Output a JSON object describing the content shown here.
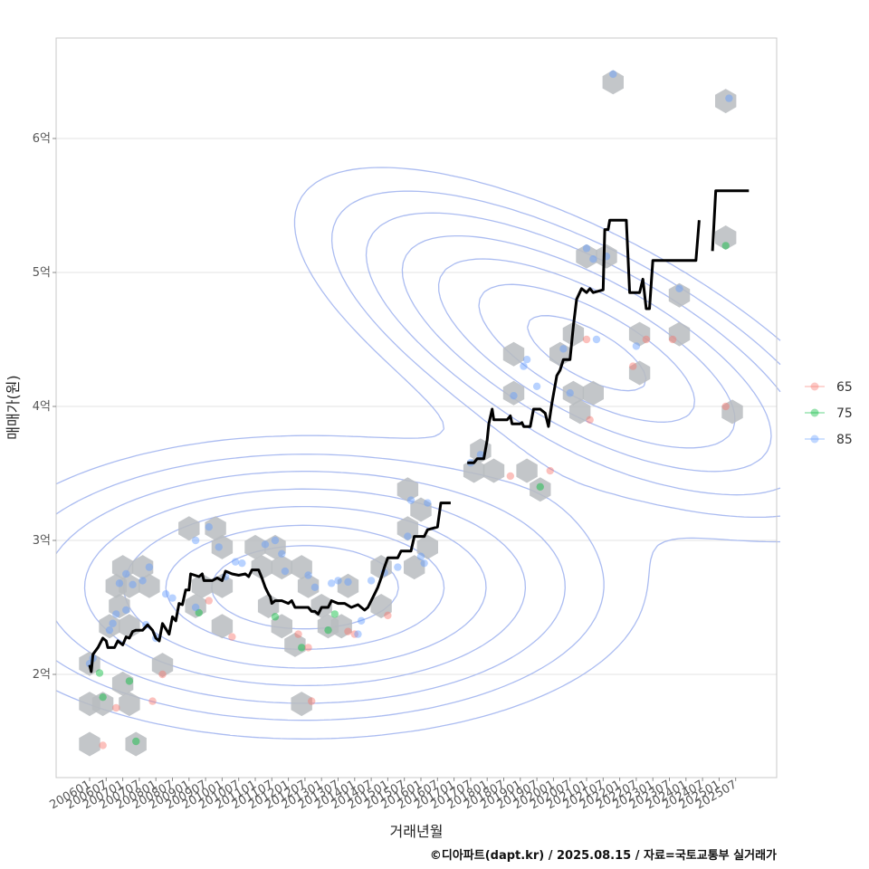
{
  "caption": "©디아파트(dapt.kr) / 2025.08.15 / 자료=국토교통부 실거래가",
  "chart_data": {
    "type": "scatter",
    "xlabel": "거래년월",
    "ylabel": "매매가(원)",
    "ylim": [
      1.25,
      6.85
    ],
    "yticks": [
      {
        "v": 2,
        "label": "2억"
      },
      {
        "v": 3,
        "label": "3억"
      },
      {
        "v": 4,
        "label": "4억"
      },
      {
        "v": 5,
        "label": "5억"
      },
      {
        "v": 6,
        "label": "6억"
      }
    ],
    "xticks": [
      "200601",
      "200607",
      "200701",
      "200707",
      "200801",
      "200807",
      "200901",
      "200907",
      "201001",
      "201007",
      "201101",
      "201107",
      "201201",
      "201207",
      "201301",
      "201307",
      "201401",
      "201407",
      "201501",
      "201507",
      "201601",
      "201607",
      "201701",
      "201707",
      "201801",
      "201807",
      "201901",
      "201907",
      "202001",
      "202007",
      "202101",
      "202107",
      "202201",
      "202207",
      "202301",
      "202307",
      "202401",
      "202407",
      "202501",
      "202507"
    ],
    "grid": true,
    "legend_position": "right",
    "legend": [
      {
        "name": "65",
        "color": "#f8766d"
      },
      {
        "name": "75",
        "color": "#00ba38"
      },
      {
        "name": "85",
        "color": "#619cff"
      }
    ],
    "points": [
      {
        "size": "85",
        "t": 0.0,
        "y": 2.08
      },
      {
        "size": "75",
        "t": 0.3,
        "y": 2.01
      },
      {
        "size": "85",
        "t": 0.1,
        "y": 2.12
      },
      {
        "size": "75",
        "t": 0.4,
        "y": 1.83
      },
      {
        "size": "65",
        "t": 0.4,
        "y": 1.47
      },
      {
        "size": "85",
        "t": 0.6,
        "y": 2.33
      },
      {
        "size": "85",
        "t": 0.7,
        "y": 2.38
      },
      {
        "size": "85",
        "t": 0.8,
        "y": 2.45
      },
      {
        "size": "85",
        "t": 0.9,
        "y": 2.68
      },
      {
        "size": "85",
        "t": 1.1,
        "y": 2.75
      },
      {
        "size": "85",
        "t": 1.3,
        "y": 2.67
      },
      {
        "size": "85",
        "t": 1.1,
        "y": 2.48
      },
      {
        "size": "65",
        "t": 0.8,
        "y": 1.75
      },
      {
        "size": "75",
        "t": 1.2,
        "y": 1.95
      },
      {
        "size": "75",
        "t": 1.4,
        "y": 1.5
      },
      {
        "size": "85",
        "t": 1.6,
        "y": 2.7
      },
      {
        "size": "85",
        "t": 1.8,
        "y": 2.8
      },
      {
        "size": "85",
        "t": 1.7,
        "y": 2.37
      },
      {
        "size": "65",
        "t": 1.9,
        "y": 1.8
      },
      {
        "size": "85",
        "t": 2.3,
        "y": 2.6
      },
      {
        "size": "65",
        "t": 2.2,
        "y": 2.0
      },
      {
        "size": "85",
        "t": 3.2,
        "y": 3.0
      },
      {
        "size": "85",
        "t": 3.6,
        "y": 3.1
      },
      {
        "size": "85",
        "t": 3.9,
        "y": 2.95
      },
      {
        "size": "65",
        "t": 3.6,
        "y": 2.55
      },
      {
        "size": "75",
        "t": 3.3,
        "y": 2.46
      },
      {
        "size": "85",
        "t": 3.2,
        "y": 2.5
      },
      {
        "size": "85",
        "t": 4.1,
        "y": 2.73
      },
      {
        "size": "65",
        "t": 4.3,
        "y": 2.28
      },
      {
        "size": "85",
        "t": 4.4,
        "y": 2.84
      },
      {
        "size": "85",
        "t": 4.6,
        "y": 2.83
      },
      {
        "size": "85",
        "t": 5.3,
        "y": 2.97
      },
      {
        "size": "85",
        "t": 5.6,
        "y": 3.0
      },
      {
        "size": "85",
        "t": 5.8,
        "y": 2.9
      },
      {
        "size": "85",
        "t": 5.9,
        "y": 2.77
      },
      {
        "size": "75",
        "t": 5.6,
        "y": 2.43
      },
      {
        "size": "65",
        "t": 6.3,
        "y": 2.3
      },
      {
        "size": "75",
        "t": 6.4,
        "y": 2.2
      },
      {
        "size": "65",
        "t": 6.6,
        "y": 2.2
      },
      {
        "size": "85",
        "t": 6.6,
        "y": 2.74
      },
      {
        "size": "85",
        "t": 6.8,
        "y": 2.65
      },
      {
        "size": "65",
        "t": 6.7,
        "y": 1.8
      },
      {
        "size": "85",
        "t": 7.3,
        "y": 2.68
      },
      {
        "size": "85",
        "t": 7.5,
        "y": 2.7
      },
      {
        "size": "85",
        "t": 7.8,
        "y": 2.69
      },
      {
        "size": "75",
        "t": 7.2,
        "y": 2.33
      },
      {
        "size": "75",
        "t": 7.4,
        "y": 2.45
      },
      {
        "size": "65",
        "t": 7.8,
        "y": 2.32
      },
      {
        "size": "65",
        "t": 8.0,
        "y": 2.3
      },
      {
        "size": "85",
        "t": 8.1,
        "y": 2.3
      },
      {
        "size": "85",
        "t": 8.2,
        "y": 2.4
      },
      {
        "size": "85",
        "t": 8.5,
        "y": 2.7
      },
      {
        "size": "85",
        "t": 8.9,
        "y": 2.76
      },
      {
        "size": "65",
        "t": 9.0,
        "y": 2.44
      },
      {
        "size": "85",
        "t": 9.3,
        "y": 2.8
      },
      {
        "size": "85",
        "t": 9.7,
        "y": 3.3
      },
      {
        "size": "85",
        "t": 9.6,
        "y": 3.03
      },
      {
        "size": "85",
        "t": 10.2,
        "y": 3.28
      },
      {
        "size": "85",
        "t": 10.0,
        "y": 2.88
      },
      {
        "size": "85",
        "t": 10.1,
        "y": 2.83
      },
      {
        "size": "85",
        "t": 11.5,
        "y": 3.58
      },
      {
        "size": "85",
        "t": 11.8,
        "y": 3.64
      },
      {
        "size": "65",
        "t": 12.7,
        "y": 3.48
      },
      {
        "size": "75",
        "t": 13.6,
        "y": 3.4
      },
      {
        "size": "65",
        "t": 13.9,
        "y": 3.52
      },
      {
        "size": "85",
        "t": 12.8,
        "y": 4.08
      },
      {
        "size": "85",
        "t": 13.1,
        "y": 4.3
      },
      {
        "size": "85",
        "t": 13.2,
        "y": 4.35
      },
      {
        "size": "85",
        "t": 13.5,
        "y": 4.15
      },
      {
        "size": "85",
        "t": 14.3,
        "y": 4.43
      },
      {
        "size": "85",
        "t": 14.5,
        "y": 4.1
      },
      {
        "size": "85",
        "t": 15.3,
        "y": 4.5
      },
      {
        "size": "65",
        "t": 15.0,
        "y": 4.5
      },
      {
        "size": "65",
        "t": 15.1,
        "y": 3.9
      },
      {
        "size": "85",
        "t": 15.0,
        "y": 5.18
      },
      {
        "size": "85",
        "t": 15.2,
        "y": 5.1
      },
      {
        "size": "85",
        "t": 15.6,
        "y": 5.12
      },
      {
        "size": "85",
        "t": 15.8,
        "y": 6.48
      },
      {
        "size": "65",
        "t": 16.4,
        "y": 4.3
      },
      {
        "size": "65",
        "t": 16.8,
        "y": 4.5
      },
      {
        "size": "85",
        "t": 16.5,
        "y": 4.45
      },
      {
        "size": "65",
        "t": 17.6,
        "y": 4.5
      },
      {
        "size": "85",
        "t": 17.8,
        "y": 4.88
      },
      {
        "size": "65",
        "t": 19.2,
        "y": 4.0
      },
      {
        "size": "75",
        "t": 19.2,
        "y": 5.2
      },
      {
        "size": "85",
        "t": 19.3,
        "y": 6.3
      },
      {
        "size": "85",
        "t": 2.0,
        "y": 2.27
      },
      {
        "size": "85",
        "t": 2.5,
        "y": 2.57
      }
    ],
    "hexbins": [
      [
        0.0,
        2.08
      ],
      [
        0.0,
        1.78
      ],
      [
        0.0,
        1.48
      ],
      [
        0.4,
        1.78
      ],
      [
        0.6,
        2.36
      ],
      [
        0.8,
        2.66
      ],
      [
        0.9,
        2.51
      ],
      [
        1.0,
        2.8
      ],
      [
        1.0,
        1.93
      ],
      [
        1.2,
        2.66
      ],
      [
        1.2,
        2.36
      ],
      [
        1.2,
        1.78
      ],
      [
        1.4,
        1.48
      ],
      [
        1.6,
        2.8
      ],
      [
        1.8,
        2.66
      ],
      [
        2.2,
        2.07
      ],
      [
        3.0,
        3.09
      ],
      [
        3.2,
        2.51
      ],
      [
        3.4,
        2.66
      ],
      [
        3.8,
        3.09
      ],
      [
        4.0,
        2.95
      ],
      [
        4.0,
        2.66
      ],
      [
        4.0,
        2.36
      ],
      [
        5.0,
        2.95
      ],
      [
        5.2,
        2.8
      ],
      [
        5.4,
        2.51
      ],
      [
        5.6,
        2.95
      ],
      [
        5.8,
        2.8
      ],
      [
        5.8,
        2.36
      ],
      [
        6.2,
        2.22
      ],
      [
        6.4,
        2.8
      ],
      [
        6.4,
        1.78
      ],
      [
        6.6,
        2.66
      ],
      [
        7.0,
        2.51
      ],
      [
        7.2,
        2.36
      ],
      [
        7.6,
        2.36
      ],
      [
        7.8,
        2.66
      ],
      [
        8.8,
        2.51
      ],
      [
        8.8,
        2.8
      ],
      [
        9.6,
        3.38
      ],
      [
        9.6,
        3.09
      ],
      [
        9.8,
        2.8
      ],
      [
        10.0,
        3.23
      ],
      [
        10.2,
        2.95
      ],
      [
        11.6,
        3.52
      ],
      [
        11.8,
        3.67
      ],
      [
        12.2,
        3.52
      ],
      [
        12.8,
        4.39
      ],
      [
        12.8,
        4.1
      ],
      [
        13.2,
        3.52
      ],
      [
        13.6,
        3.38
      ],
      [
        14.2,
        4.39
      ],
      [
        14.6,
        4.54
      ],
      [
        14.6,
        4.1
      ],
      [
        15.2,
        4.1
      ],
      [
        14.8,
        3.96
      ],
      [
        15.0,
        5.12
      ],
      [
        15.6,
        5.12
      ],
      [
        15.8,
        6.42
      ],
      [
        16.6,
        4.54
      ],
      [
        16.6,
        4.25
      ],
      [
        17.8,
        4.83
      ],
      [
        17.8,
        4.54
      ],
      [
        19.2,
        6.28
      ],
      [
        19.2,
        5.26
      ],
      [
        19.4,
        3.96
      ]
    ],
    "median_segments": [
      [
        [
          0.0,
          2.07
        ],
        [
          0.05,
          2.02
        ],
        [
          0.1,
          2.15
        ],
        [
          0.25,
          2.2
        ],
        [
          0.4,
          2.27
        ],
        [
          0.5,
          2.25
        ],
        [
          0.55,
          2.2
        ],
        [
          0.75,
          2.2
        ],
        [
          0.85,
          2.25
        ],
        [
          1.0,
          2.22
        ],
        [
          1.1,
          2.28
        ],
        [
          1.2,
          2.27
        ],
        [
          1.3,
          2.32
        ],
        [
          1.4,
          2.33
        ],
        [
          1.6,
          2.33
        ],
        [
          1.75,
          2.37
        ],
        [
          1.9,
          2.33
        ],
        [
          2.0,
          2.27
        ],
        [
          2.1,
          2.25
        ],
        [
          2.2,
          2.38
        ],
        [
          2.3,
          2.34
        ],
        [
          2.4,
          2.3
        ],
        [
          2.5,
          2.43
        ],
        [
          2.6,
          2.4
        ],
        [
          2.7,
          2.53
        ],
        [
          2.8,
          2.52
        ],
        [
          2.9,
          2.63
        ],
        [
          3.0,
          2.63
        ],
        [
          3.05,
          2.75
        ],
        [
          3.3,
          2.73
        ],
        [
          3.4,
          2.75
        ],
        [
          3.45,
          2.7
        ],
        [
          3.7,
          2.7
        ],
        [
          3.85,
          2.72
        ],
        [
          4.0,
          2.7
        ],
        [
          4.1,
          2.77
        ],
        [
          4.3,
          2.75
        ],
        [
          4.5,
          2.74
        ],
        [
          4.7,
          2.75
        ],
        [
          4.8,
          2.73
        ],
        [
          4.9,
          2.78
        ],
        [
          5.1,
          2.78
        ],
        [
          5.2,
          2.72
        ],
        [
          5.3,
          2.65
        ],
        [
          5.4,
          2.6
        ],
        [
          5.45,
          2.58
        ],
        [
          5.5,
          2.53
        ],
        [
          5.6,
          2.55
        ],
        [
          5.8,
          2.55
        ],
        [
          6.0,
          2.53
        ],
        [
          6.1,
          2.55
        ],
        [
          6.2,
          2.5
        ],
        [
          6.6,
          2.5
        ],
        [
          6.7,
          2.47
        ],
        [
          6.8,
          2.47
        ],
        [
          6.9,
          2.45
        ],
        [
          7.0,
          2.5
        ],
        [
          7.2,
          2.5
        ],
        [
          7.3,
          2.55
        ],
        [
          7.5,
          2.53
        ],
        [
          7.7,
          2.53
        ],
        [
          7.9,
          2.5
        ],
        [
          8.1,
          2.52
        ],
        [
          8.3,
          2.48
        ],
        [
          8.4,
          2.5
        ],
        [
          8.5,
          2.55
        ],
        [
          8.6,
          2.6
        ],
        [
          8.7,
          2.65
        ],
        [
          8.8,
          2.72
        ],
        [
          8.9,
          2.8
        ],
        [
          9.0,
          2.87
        ],
        [
          9.3,
          2.87
        ],
        [
          9.4,
          2.92
        ],
        [
          9.7,
          2.92
        ],
        [
          9.8,
          3.03
        ],
        [
          10.1,
          3.03
        ],
        [
          10.2,
          3.08
        ],
        [
          10.5,
          3.1
        ],
        [
          10.6,
          3.28
        ],
        [
          10.9,
          3.28
        ]
      ],
      [
        [
          11.4,
          3.58
        ],
        [
          11.6,
          3.58
        ],
        [
          11.7,
          3.61
        ],
        [
          11.9,
          3.61
        ],
        [
          12.0,
          3.75
        ],
        [
          12.05,
          3.87
        ],
        [
          12.15,
          3.98
        ],
        [
          12.2,
          3.9
        ],
        [
          12.6,
          3.9
        ],
        [
          12.7,
          3.93
        ],
        [
          12.75,
          3.87
        ],
        [
          13.0,
          3.87
        ],
        [
          13.05,
          3.88
        ],
        [
          13.1,
          3.85
        ],
        [
          13.3,
          3.85
        ],
        [
          13.4,
          3.98
        ],
        [
          13.6,
          3.98
        ],
        [
          13.75,
          3.95
        ],
        [
          13.85,
          3.85
        ],
        [
          13.95,
          4.02
        ],
        [
          14.1,
          4.23
        ],
        [
          14.2,
          4.27
        ],
        [
          14.3,
          4.35
        ],
        [
          14.5,
          4.35
        ],
        [
          14.6,
          4.6
        ],
        [
          14.7,
          4.8
        ],
        [
          14.85,
          4.88
        ],
        [
          15.0,
          4.85
        ],
        [
          15.1,
          4.88
        ],
        [
          15.2,
          4.85
        ],
        [
          15.5,
          4.87
        ],
        [
          15.55,
          5.32
        ],
        [
          15.65,
          5.32
        ],
        [
          15.7,
          5.39
        ],
        [
          16.2,
          5.39
        ],
        [
          16.3,
          4.85
        ],
        [
          16.6,
          4.85
        ],
        [
          16.7,
          4.95
        ],
        [
          16.8,
          4.73
        ],
        [
          16.9,
          4.73
        ],
        [
          17.0,
          5.09
        ],
        [
          18.3,
          5.09
        ],
        [
          18.4,
          5.39
        ]
      ],
      [
        [
          18.8,
          5.16
        ],
        [
          18.9,
          5.61
        ],
        [
          19.9,
          5.61
        ]
      ]
    ],
    "density": {
      "center1": {
        "t": 6.5,
        "y": 2.65
      },
      "center2": {
        "t": 15.0,
        "y": 4.4
      },
      "levels": [
        0.1,
        0.17,
        0.26,
        0.38,
        0.52,
        0.68,
        0.84
      ]
    }
  },
  "colors": {
    "line": "#000000",
    "hex": "#b8bcc0",
    "contour": "#9cb0ee",
    "grid": "#e3e3e3",
    "panel_border": "#c8c8c8"
  }
}
